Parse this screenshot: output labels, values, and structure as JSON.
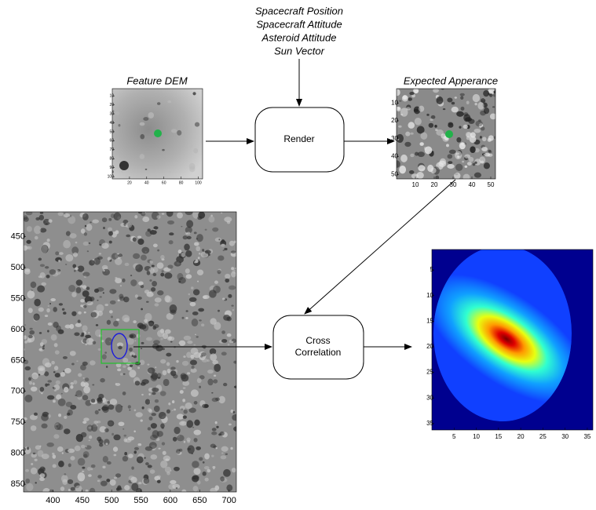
{
  "inputs": [
    "Spacecraft Position",
    "Spacecraft Attitude",
    "Asteroid Attitude",
    "Sun Vector"
  ],
  "feature_dem": {
    "title": "Feature DEM",
    "xticks": [
      20,
      40,
      60,
      80,
      100
    ],
    "yticks": [
      10,
      20,
      30,
      40,
      50,
      60,
      70,
      80,
      90,
      100
    ]
  },
  "render": {
    "label": "Render"
  },
  "expected_appearance": {
    "title": "Expected Apperance",
    "xticks": [
      10,
      20,
      30,
      40,
      50
    ],
    "yticks": [
      10,
      20,
      30,
      40,
      50
    ]
  },
  "terrain_image": {
    "xticks": [
      400,
      450,
      500,
      550,
      600,
      650,
      700
    ],
    "yticks": [
      450,
      500,
      550,
      600,
      650,
      700,
      750,
      800,
      850
    ]
  },
  "cross_correlation": {
    "label": [
      "Cross",
      "Correlation"
    ]
  },
  "correlation_map": {
    "xticks": [
      5,
      10,
      15,
      20,
      25,
      30,
      35
    ],
    "yticks": [
      5,
      10,
      15,
      20,
      25,
      30,
      35
    ]
  }
}
